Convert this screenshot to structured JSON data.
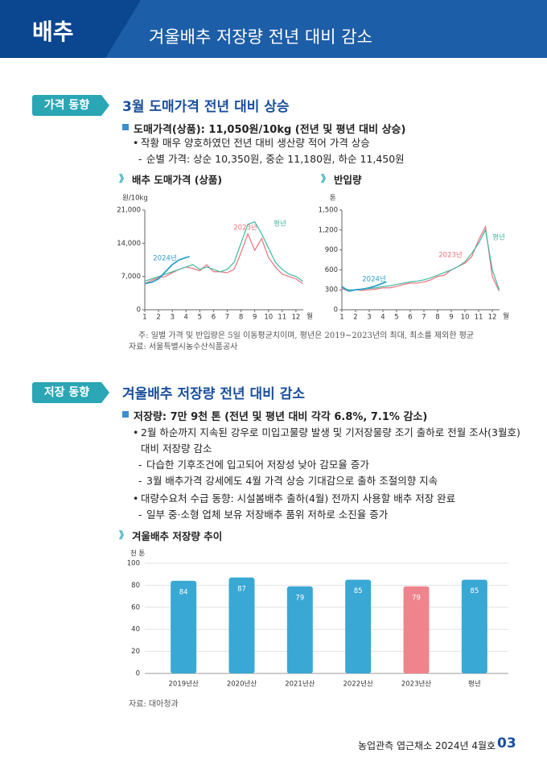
{
  "header": {
    "category": "배추",
    "title": "겨울배추 저장량 전년 대비 감소"
  },
  "sections": [
    {
      "tag": "가격 동향",
      "heading": "3월 도매가격 전년 대비 상승",
      "point": "도매가격(상품): 11,050원/10kg (전년 및 평년 대비 상승)",
      "items": [
        {
          "text": "작황 매우 양호하였던 전년 대비 생산량 적어 가격 상승",
          "subs": [
            "순별 가격: 상순 10,350원, 중순 11,180원, 하순 11,450원"
          ]
        }
      ],
      "notes": [
        "주: 일별 가격 및 반입량은 5일 이동평균치이며, 평년은 2019~2023년의 최대, 최소를 제외한 평균",
        "자료: 서울특별시농수산식품공사"
      ]
    },
    {
      "tag": "저장 동향",
      "heading": "겨울배추 저장량 전년 대비 감소",
      "point": "저장량: 7만 9천 톤 (전년 및 평년 대비 각각 6.8%, 7.1% 감소)",
      "items": [
        {
          "text": "2월 하순까지 지속된 강우로 미입고물량 발생 및 기저장물량 조기 출하로 전월 조사(3월호) 대비 저장량 감소",
          "subs": [
            "다습한 기후조건에 입고되어 저장성 낮아 감모율 증가",
            "3월 배추가격 강세에도 4월 가격 상승 기대감으로 출하 조절의향 지속"
          ]
        },
        {
          "text": "대량수요처 수급 동향: 시설봄배추 출하(4월) 전까지 사용할 배추 저장 완료",
          "subs": [
            "일부 중·소형 업체 보유 저장배추 품위 저하로 소진율 증가"
          ]
        }
      ],
      "notes": [
        "자료: 대아청과"
      ]
    }
  ],
  "chart_data": [
    {
      "type": "line",
      "title": "배추 도매가격 (상품)",
      "ylabel": "원/10kg",
      "xlabel": "월",
      "xlim": [
        1,
        13
      ],
      "xticks": [
        1,
        2,
        3,
        4,
        5,
        6,
        7,
        8,
        9,
        10,
        11,
        12
      ],
      "ylim": [
        0,
        21000
      ],
      "yticks": [
        0,
        {
          "value": 7000,
          "label": "7,000"
        },
        {
          "value": 14000,
          "label": "14,000"
        },
        {
          "value": 21000,
          "label": "21,000"
        }
      ],
      "series": [
        {
          "name": "2023년",
          "color": "#f0707a",
          "x": [
            1,
            1.5,
            2,
            2.5,
            3,
            3.5,
            4,
            4.5,
            5,
            5.5,
            6,
            6.5,
            7,
            7.5,
            8,
            8.5,
            9,
            9.5,
            10,
            10.5,
            11,
            11.5,
            12,
            12.5
          ],
          "values": [
            5500,
            6200,
            6800,
            7000,
            7800,
            8500,
            9000,
            8700,
            8200,
            9500,
            8000,
            8000,
            7800,
            8500,
            12000,
            16000,
            12500,
            15000,
            11000,
            9000,
            7500,
            7000,
            6500,
            5500
          ]
        },
        {
          "name": "평년",
          "color": "#3cb8a0",
          "x": [
            1,
            1.5,
            2,
            2.5,
            3,
            3.5,
            4,
            4.5,
            5,
            5.5,
            6,
            6.5,
            7,
            7.5,
            8,
            8.5,
            9,
            9.5,
            10,
            10.5,
            11,
            11.5,
            12,
            12.5
          ],
          "values": [
            6000,
            6500,
            7000,
            7500,
            8000,
            8500,
            9000,
            9500,
            8500,
            9000,
            8500,
            8000,
            8500,
            10000,
            14000,
            18000,
            18500,
            16000,
            13000,
            10000,
            8500,
            7500,
            7000,
            6000
          ]
        },
        {
          "name": "2024년",
          "color": "#2a9fc9",
          "x": [
            1,
            1.5,
            2,
            2.5,
            3,
            3.5,
            4,
            4.25
          ],
          "values": [
            5500,
            5800,
            6500,
            8000,
            9500,
            10500,
            11000,
            11200
          ]
        }
      ]
    },
    {
      "type": "line",
      "title": "반입량",
      "ylabel": "톤",
      "xlabel": "월",
      "xlim": [
        1,
        13
      ],
      "xticks": [
        1,
        2,
        3,
        4,
        5,
        6,
        7,
        8,
        9,
        10,
        11,
        12
      ],
      "ylim": [
        0,
        1500
      ],
      "yticks": [
        0,
        300,
        600,
        900,
        {
          "value": 1200,
          "label": "1,200"
        },
        {
          "value": 1500,
          "label": "1,500"
        }
      ],
      "series": [
        {
          "name": "2023년",
          "color": "#f0707a",
          "x": [
            1,
            1.5,
            2,
            2.5,
            3,
            3.5,
            4,
            4.5,
            5,
            5.5,
            6,
            6.5,
            7,
            7.5,
            8,
            8.5,
            9,
            9.5,
            10,
            10.5,
            11,
            11.5,
            12,
            12.5
          ],
          "values": [
            320,
            280,
            300,
            290,
            300,
            310,
            330,
            330,
            350,
            380,
            400,
            400,
            420,
            450,
            500,
            520,
            600,
            650,
            700,
            800,
            1050,
            1250,
            500,
            280
          ]
        },
        {
          "name": "평년",
          "color": "#3cb8a0",
          "x": [
            1,
            1.5,
            2,
            2.5,
            3,
            3.5,
            4,
            4.5,
            5,
            5.5,
            6,
            6.5,
            7,
            7.5,
            8,
            8.5,
            9,
            9.5,
            10,
            10.5,
            11,
            11.5,
            12,
            12.5
          ],
          "values": [
            330,
            300,
            300,
            310,
            320,
            330,
            350,
            360,
            380,
            400,
            420,
            430,
            450,
            480,
            520,
            560,
            600,
            650,
            720,
            850,
            1000,
            1200,
            600,
            300
          ]
        },
        {
          "name": "2024년",
          "color": "#2a9fc9",
          "x": [
            1,
            1.5,
            2,
            2.5,
            3,
            3.5,
            4,
            4.25
          ],
          "values": [
            350,
            280,
            300,
            310,
            330,
            360,
            400,
            420
          ]
        }
      ]
    },
    {
      "type": "bar",
      "title": "겨울배추 저장량 추이",
      "ylabel": "천 톤",
      "categories": [
        "2019년산",
        "2020년산",
        "2021년산",
        "2022년산",
        "2023년산",
        "평년"
      ],
      "values": [
        84,
        87,
        79,
        85,
        79,
        85
      ],
      "colors": [
        "#3aa8d4",
        "#3aa8d4",
        "#3aa8d4",
        "#3aa8d4",
        "#f0848c",
        "#3aa8d4"
      ],
      "ylim": [
        0,
        100
      ],
      "yticks": [
        0,
        20,
        40,
        60,
        80,
        100
      ],
      "grid": true
    }
  ],
  "footer": {
    "publication": "농업관측 엽근채소 2024년 4월호",
    "page": "03"
  }
}
